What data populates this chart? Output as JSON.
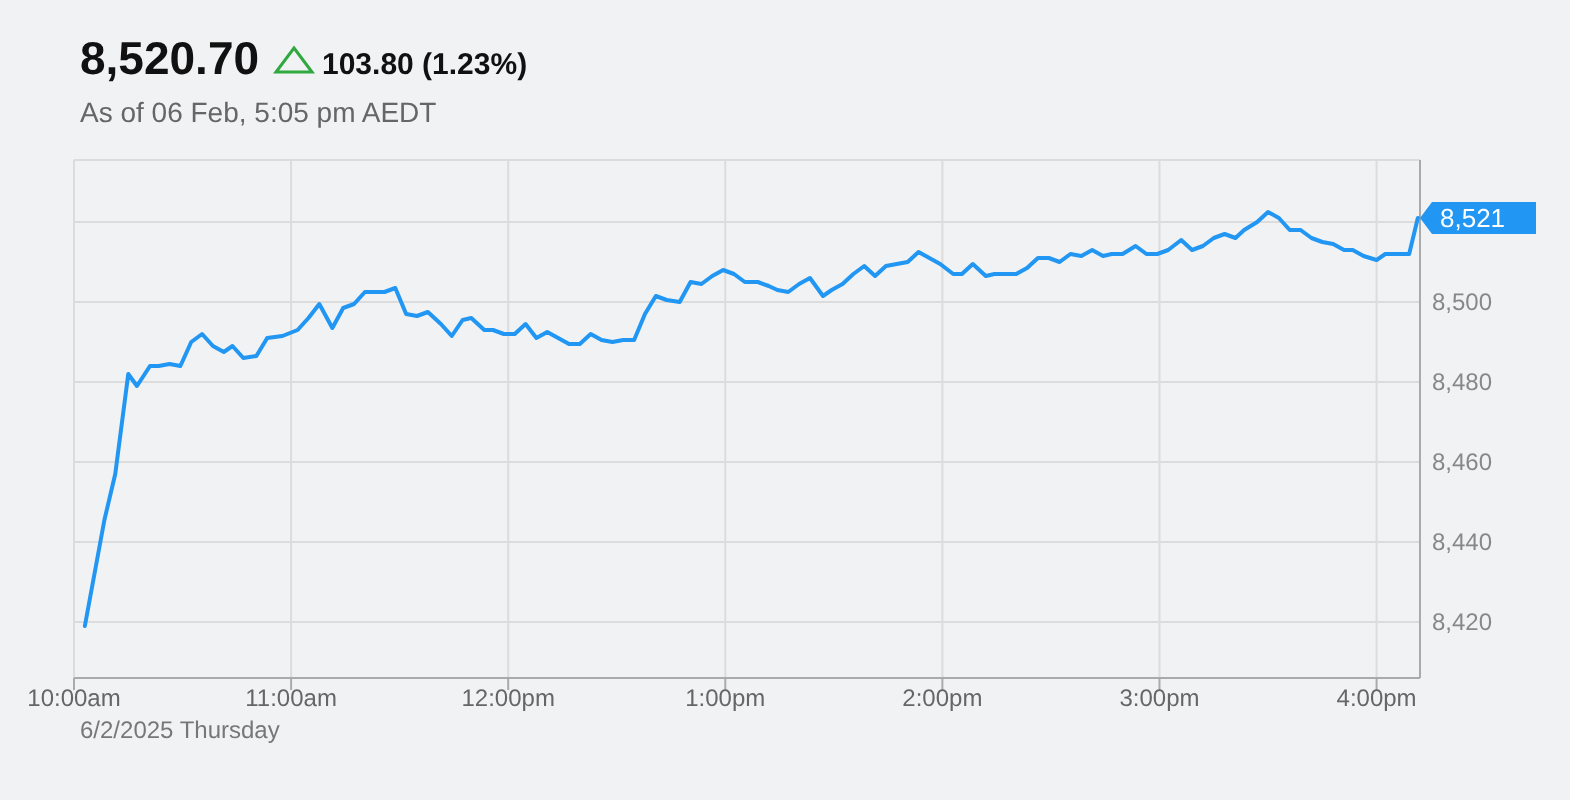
{
  "chart_data": {
    "type": "line",
    "title": "8,520.70",
    "subtitle": "As of 06 Feb, 5:05 pm AEDT",
    "annotations": [
      "103.80 (1.23%)",
      "6/2/2025 Thursday"
    ],
    "color": "#2196f3",
    "grid": true,
    "xlim": [
      10,
      16.2
    ],
    "ylim": [
      8406,
      8535.5
    ],
    "xticks": [
      {
        "value": 10,
        "label": "10:00am"
      },
      {
        "value": 11,
        "label": "11:00am"
      },
      {
        "value": 12,
        "label": "12:00pm"
      },
      {
        "value": 13,
        "label": "1:00pm"
      },
      {
        "value": 14,
        "label": "2:00pm"
      },
      {
        "value": 15,
        "label": "3:00pm"
      },
      {
        "value": 16,
        "label": "4:00pm"
      }
    ],
    "yticks": [
      {
        "value": 8420,
        "label": "8,420"
      },
      {
        "value": 8440,
        "label": "8,440"
      },
      {
        "value": 8460,
        "label": "8,460"
      },
      {
        "value": 8480,
        "label": "8,480"
      },
      {
        "value": 8500,
        "label": "8,500"
      },
      {
        "value": 8520,
        "label": null
      }
    ],
    "x": [
      10.05,
      10.14,
      10.19,
      10.25,
      10.29,
      10.35,
      10.39,
      10.44,
      10.49,
      10.54,
      10.59,
      10.64,
      10.69,
      10.73,
      10.78,
      10.84,
      10.89,
      10.96,
      11.03,
      11.08,
      11.13,
      11.19,
      11.24,
      11.29,
      11.34,
      11.43,
      11.48,
      11.53,
      11.58,
      11.63,
      11.69,
      11.74,
      11.79,
      11.83,
      11.89,
      11.93,
      11.98,
      12.03,
      12.08,
      12.13,
      12.18,
      12.23,
      12.28,
      12.33,
      12.38,
      12.43,
      12.48,
      12.53,
      12.58,
      12.63,
      12.68,
      12.73,
      12.79,
      12.84,
      12.89,
      12.94,
      12.99,
      13.04,
      13.09,
      13.15,
      13.2,
      13.24,
      13.29,
      13.34,
      13.39,
      13.45,
      13.49,
      13.54,
      13.59,
      13.64,
      13.69,
      13.74,
      13.79,
      13.84,
      13.89,
      13.94,
      13.99,
      14.05,
      14.09,
      14.14,
      14.2,
      14.24,
      14.34,
      14.39,
      14.44,
      14.49,
      14.54,
      14.59,
      14.64,
      14.69,
      14.74,
      14.78,
      14.83,
      14.89,
      14.94,
      14.99,
      15.04,
      15.1,
      15.15,
      15.2,
      15.25,
      15.3,
      15.35,
      15.39,
      15.45,
      15.5,
      15.55,
      15.6,
      15.65,
      15.7,
      15.75,
      15.8,
      15.85,
      15.89,
      15.94,
      16.0,
      16.04,
      16.15,
      16.19
    ],
    "values": [
      8419,
      8445.5,
      8457,
      8482,
      8479,
      8484,
      8484,
      8484.5,
      8484,
      8490,
      8492,
      8489,
      8487.5,
      8489,
      8486,
      8486.5,
      8491,
      8491.5,
      8493,
      8496,
      8499.5,
      8493.5,
      8498.5,
      8499.5,
      8502.5,
      8502.5,
      8503.5,
      8497,
      8496.5,
      8497.5,
      8494.5,
      8491.5,
      8495.5,
      8496,
      8493,
      8493,
      8492,
      8492,
      8494.5,
      8491,
      8492.5,
      8491,
      8489.5,
      8489.5,
      8492,
      8490.5,
      8490,
      8490.5,
      8490.5,
      8497,
      8501.5,
      8500.5,
      8500,
      8505,
      8504.5,
      8506.5,
      8508,
      8507,
      8505,
      8505,
      8504,
      8503,
      8502.5,
      8504.5,
      8506,
      8501.5,
      8503,
      8504.5,
      8507,
      8509,
      8506.5,
      8509,
      8509.5,
      8510,
      8512.5,
      8511,
      8509.5,
      8507,
      8507,
      8509.5,
      8506.5,
      8507,
      8507,
      8508.5,
      8511,
      8511,
      8510,
      8512,
      8511.5,
      8513,
      8511.5,
      8512,
      8512,
      8514,
      8512,
      8512,
      8513,
      8515.5,
      8513,
      8514,
      8516,
      8517,
      8516,
      8518,
      8520,
      8522.5,
      8521,
      8518,
      8518,
      8516,
      8515,
      8514.5,
      8513,
      8513,
      8511.5,
      8510.5,
      8512,
      8512,
      8521
    ],
    "value_labels": [
      null,
      null,
      null,
      null,
      null,
      null,
      null,
      null,
      null,
      null,
      null,
      null,
      null,
      null,
      null,
      null,
      null,
      null,
      null,
      null,
      null,
      null,
      null,
      null,
      null,
      null,
      null,
      null,
      null,
      null,
      null,
      null,
      null,
      null,
      null,
      null,
      null,
      null,
      null,
      null,
      null,
      null,
      null,
      null,
      null,
      null,
      null,
      null,
      null,
      null,
      null,
      null,
      null,
      null,
      null,
      null,
      null,
      null,
      null,
      null,
      null,
      null,
      null,
      null,
      null,
      null,
      null,
      null,
      null,
      null,
      null,
      null,
      null,
      null,
      null,
      null,
      null,
      null,
      null,
      null,
      null,
      null,
      null,
      null,
      null,
      null,
      null,
      null,
      null,
      null,
      null,
      null,
      null,
      null,
      null,
      null,
      null,
      null,
      null,
      null,
      null,
      null,
      null,
      null,
      null,
      null,
      null,
      null,
      null,
      null,
      null,
      null,
      null,
      null,
      null,
      null,
      null,
      null,
      "8,521"
    ]
  }
}
